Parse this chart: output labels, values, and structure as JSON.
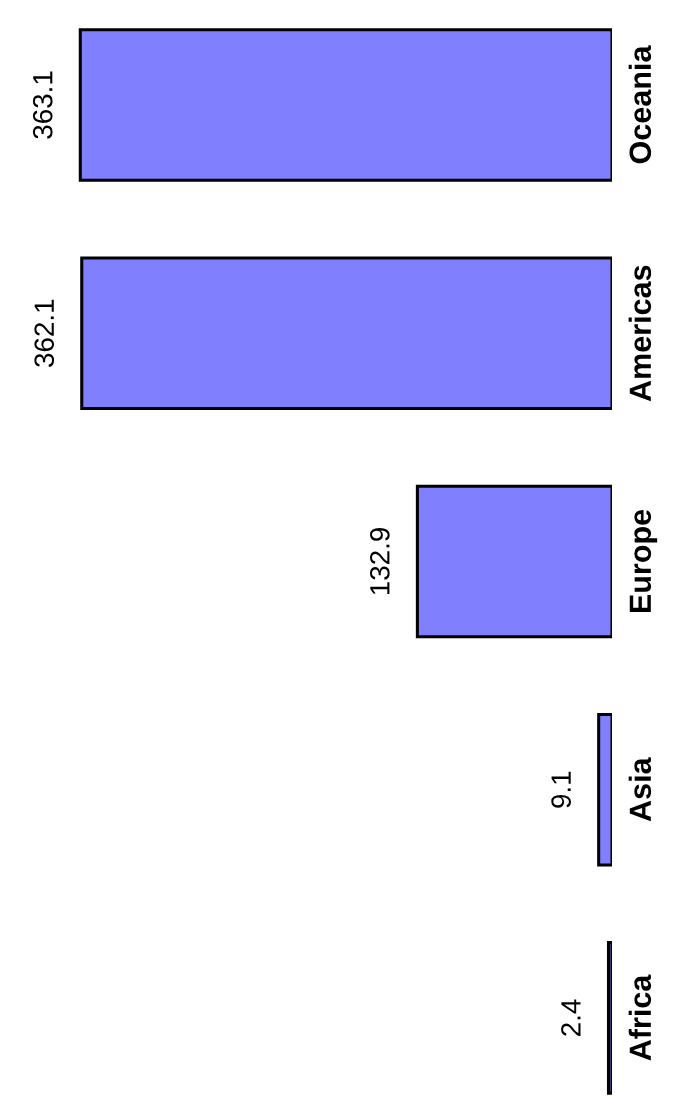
{
  "chart_data": {
    "type": "bar",
    "orientation": "horizontal",
    "categories": [
      "Oceania",
      "Americas",
      "Europe",
      "Asia",
      "Africa"
    ],
    "values": [
      363.1,
      362.1,
      132.9,
      9.1,
      2.4
    ],
    "color": "#8080ff",
    "data_labels": true,
    "tick_labels": "y",
    "grid": false,
    "legend": false
  }
}
